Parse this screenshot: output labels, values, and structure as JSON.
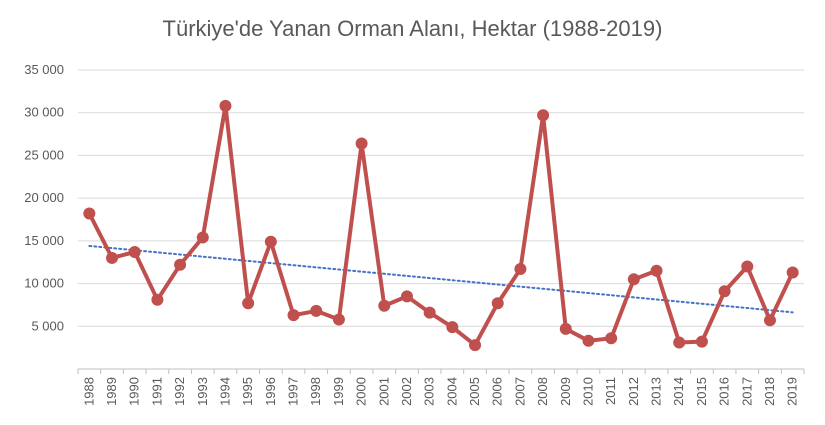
{
  "chart_data": {
    "type": "line",
    "title": "Türkiye'de Yanan Orman Alanı, Hektar (1988-2019)",
    "xlabel": "",
    "ylabel": "",
    "ylim": [
      0,
      35000
    ],
    "yticks": [
      0,
      5000,
      10000,
      15000,
      20000,
      25000,
      30000,
      35000
    ],
    "ytick_labels": [
      "",
      "5 000",
      "10 000",
      "15 000",
      "20 000",
      "25 000",
      "30 000",
      "35 000"
    ],
    "grid": true,
    "legend": "none",
    "categories": [
      "1988",
      "1989",
      "1990",
      "1991",
      "1992",
      "1993",
      "1994",
      "1995",
      "1996",
      "1997",
      "1998",
      "1999",
      "2000",
      "2001",
      "2002",
      "2003",
      "2004",
      "2005",
      "2006",
      "2007",
      "2008",
      "2009",
      "2010",
      "2011",
      "2012",
      "2013",
      "2014",
      "2015",
      "2016",
      "2017",
      "2018",
      "2019"
    ],
    "series": [
      {
        "color": "#c0504d",
        "values": [
          18200,
          13000,
          13700,
          8100,
          12200,
          15400,
          30800,
          7700,
          14900,
          6300,
          6800,
          5800,
          26400,
          7400,
          8500,
          6600,
          4900,
          2800,
          7700,
          11700,
          29700,
          4700,
          3300,
          3600,
          10500,
          11500,
          3100,
          3200,
          9100,
          12000,
          5700,
          11300
        ]
      }
    ],
    "trendline": {
      "type": "linear",
      "color": "#4472c4",
      "style": "dotted"
    }
  }
}
